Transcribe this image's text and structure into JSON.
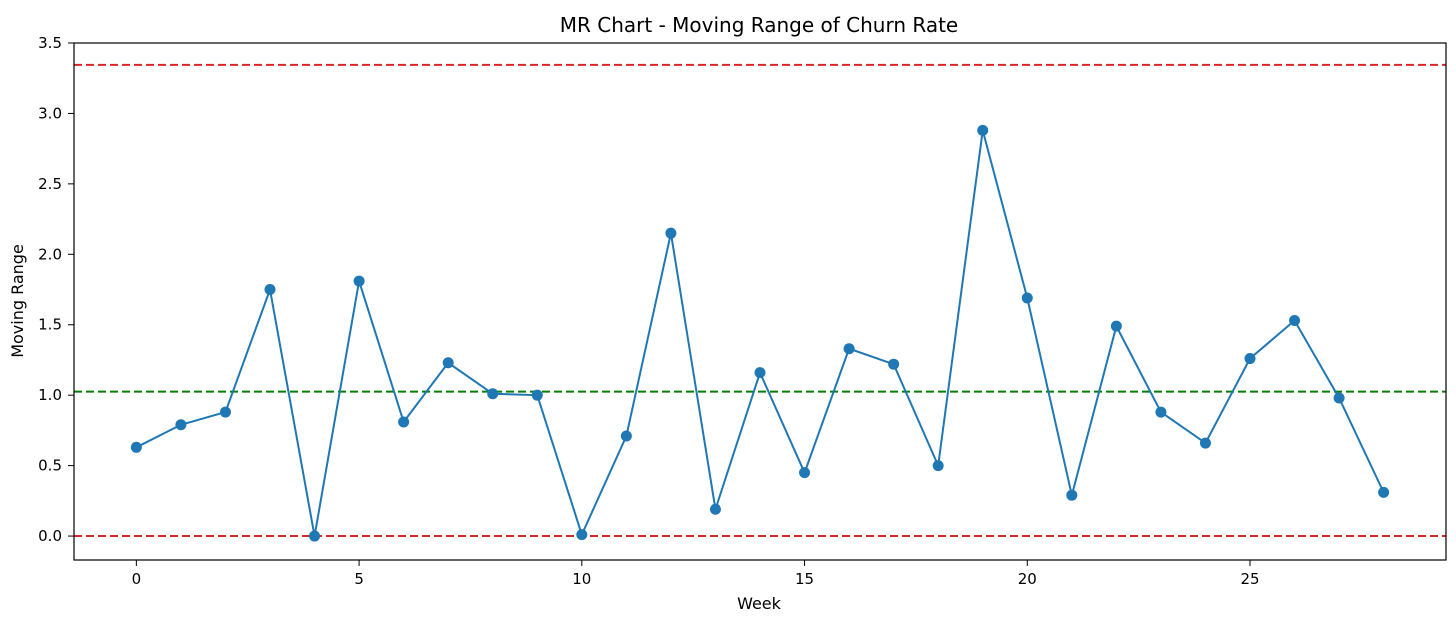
{
  "chart_data": {
    "type": "line",
    "title": "MR Chart - Moving Range of Churn Rate",
    "xlabel": "Week",
    "ylabel": "Moving Range",
    "xlim": [
      -1.4,
      29.4
    ],
    "ylim": [
      -0.17,
      3.5
    ],
    "xticks": [
      0,
      5,
      10,
      15,
      20,
      25
    ],
    "yticks": [
      0.0,
      0.5,
      1.0,
      1.5,
      2.0,
      2.5,
      3.0,
      3.5
    ],
    "grid": false,
    "series": [
      {
        "color": "#1f77b4",
        "marker": "circle",
        "x": [
          0,
          1,
          2,
          3,
          4,
          5,
          6,
          7,
          8,
          9,
          10,
          11,
          12,
          13,
          14,
          15,
          16,
          17,
          18,
          19,
          20,
          21,
          22,
          23,
          24,
          25,
          26,
          27,
          28
        ],
        "y": [
          0.63,
          0.79,
          0.88,
          1.75,
          0.0,
          1.81,
          0.81,
          1.23,
          1.01,
          1.0,
          0.01,
          0.71,
          2.15,
          0.19,
          1.16,
          0.45,
          1.33,
          1.22,
          0.5,
          2.88,
          1.69,
          0.29,
          1.49,
          0.88,
          0.66,
          1.26,
          1.53,
          0.98,
          0.31
        ]
      }
    ],
    "reference_lines": [
      {
        "kind": "ucl",
        "y": 3.345,
        "color": "#d62728",
        "style": "dashed"
      },
      {
        "kind": "center",
        "y": 1.025,
        "color": "#008000",
        "style": "dashed"
      },
      {
        "kind": "lcl",
        "y": 0.0,
        "color": "#d62728",
        "style": "dashed"
      }
    ]
  }
}
